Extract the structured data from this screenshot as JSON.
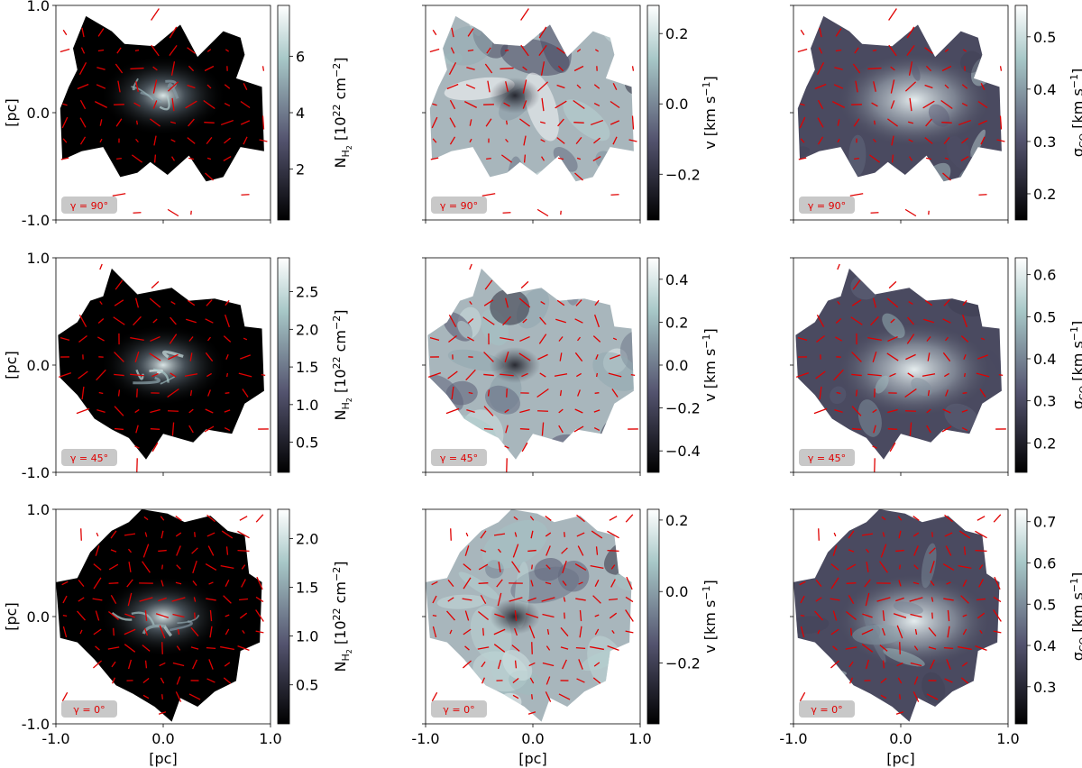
{
  "chart_data": {
    "type": "heatmap",
    "layout": "3x3 grid",
    "colormap": "bone",
    "vector_color": "#e00000",
    "axis_label": "[pc]",
    "rows": [
      {
        "gamma": "γ = 90°"
      },
      {
        "gamma": "γ = 45°"
      },
      {
        "gamma": "γ = 0°"
      }
    ],
    "xlim": [
      -1.0,
      1.0
    ],
    "ylim": [
      -1.0,
      1.0
    ],
    "x_ticks": [
      "-1.0",
      "0.0",
      "1.0"
    ],
    "y_ticks": [
      "1.0",
      "0.0",
      "-1.0"
    ],
    "colorbar_labels": {
      "column": "N",
      "column_sub": "H",
      "column_subsub": "2",
      "column_rest": " [10",
      "column_exp": "22",
      "column_unit": " cm",
      "column_unit_exp": "−2",
      "column_close": "]",
      "velocity": "v [km s",
      "velocity_exp": "−1",
      "velocity_close": "]",
      "dispersion": "σ",
      "dispersion_sub": "CO",
      "dispersion_rest": " [km s",
      "dispersion_exp": "−1",
      "dispersion_close": "]"
    },
    "panels": [
      {
        "row": 0,
        "col": 0,
        "quantity": "column",
        "cbar_range": [
          0.2,
          7.8
        ],
        "cbar_ticks": [
          2,
          4,
          6
        ],
        "cbar_tick_labels": [
          "2",
          "4",
          "6"
        ]
      },
      {
        "row": 0,
        "col": 1,
        "quantity": "velocity",
        "cbar_range": [
          -0.33,
          0.28
        ],
        "cbar_ticks": [
          -0.2,
          0.0,
          0.2
        ],
        "cbar_tick_labels": [
          "−0.2",
          "0.0",
          "0.2"
        ]
      },
      {
        "row": 0,
        "col": 2,
        "quantity": "dispersion",
        "cbar_range": [
          0.15,
          0.56
        ],
        "cbar_ticks": [
          0.2,
          0.3,
          0.4,
          0.5
        ],
        "cbar_tick_labels": [
          "0.2",
          "0.3",
          "0.4",
          "0.5"
        ]
      },
      {
        "row": 1,
        "col": 0,
        "quantity": "column",
        "cbar_range": [
          0.1,
          2.95
        ],
        "cbar_ticks": [
          0.5,
          1.0,
          1.5,
          2.0,
          2.5
        ],
        "cbar_tick_labels": [
          "0.5",
          "1.0",
          "1.5",
          "2.0",
          "2.5"
        ]
      },
      {
        "row": 1,
        "col": 1,
        "quantity": "velocity",
        "cbar_range": [
          -0.5,
          0.5
        ],
        "cbar_ticks": [
          -0.4,
          -0.2,
          0.0,
          0.2,
          0.4
        ],
        "cbar_tick_labels": [
          "−0.4",
          "−0.2",
          "0.0",
          "0.2",
          "0.4"
        ]
      },
      {
        "row": 1,
        "col": 2,
        "quantity": "dispersion",
        "cbar_range": [
          0.13,
          0.64
        ],
        "cbar_ticks": [
          0.2,
          0.3,
          0.4,
          0.5,
          0.6
        ],
        "cbar_tick_labels": [
          "0.2",
          "0.3",
          "0.4",
          "0.5",
          "0.6"
        ]
      },
      {
        "row": 2,
        "col": 0,
        "quantity": "column",
        "cbar_range": [
          0.1,
          2.3
        ],
        "cbar_ticks": [
          0.5,
          1.0,
          1.5,
          2.0
        ],
        "cbar_tick_labels": [
          "0.5",
          "1.0",
          "1.5",
          "2.0"
        ]
      },
      {
        "row": 2,
        "col": 1,
        "quantity": "velocity",
        "cbar_range": [
          -0.37,
          0.23
        ],
        "cbar_ticks": [
          -0.2,
          0.0,
          0.2
        ],
        "cbar_tick_labels": [
          "−0.2",
          "0.0",
          "0.2"
        ]
      },
      {
        "row": 2,
        "col": 2,
        "quantity": "dispersion",
        "cbar_range": [
          0.21,
          0.73
        ],
        "cbar_ticks": [
          0.3,
          0.4,
          0.5,
          0.6,
          0.7
        ],
        "cbar_tick_labels": [
          "0.3",
          "0.4",
          "0.5",
          "0.6",
          "0.7"
        ]
      }
    ]
  }
}
